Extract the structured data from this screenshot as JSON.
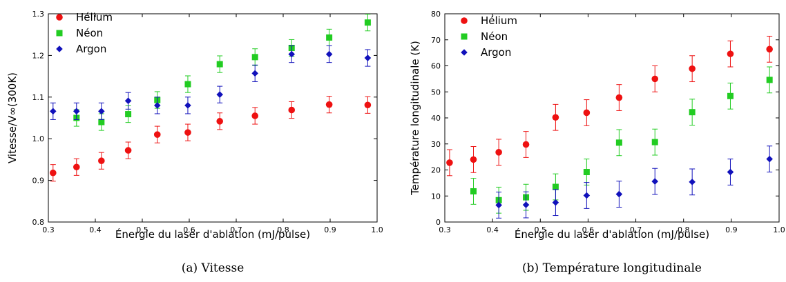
{
  "colors": {
    "helium": "#ee1111",
    "neon": "#22cc22",
    "argon": "#1111bb",
    "axis": "#000000"
  },
  "chart_data": [
    {
      "type": "scatter",
      "caption": "(a)  Vitesse",
      "xlabel": "Énergie du laser d'ablation (mJ/pulse)",
      "ylabel": "Vitesse/V∞(300K)",
      "xlim": [
        0.3,
        1.0
      ],
      "ylim": [
        0.8,
        1.3
      ],
      "xticks": [
        "0.3",
        "0.4",
        "0.5",
        "0.6",
        "0.7",
        "0.8",
        "0.9",
        "1.0"
      ],
      "yticks": [
        "0.8",
        "0.9",
        "1.0",
        "1.1",
        "1.2",
        "1.3"
      ],
      "grid": false,
      "legend_position": "top-left",
      "series": [
        {
          "name": "Hélium",
          "marker": "circle",
          "color": "#ee1111",
          "x": [
            0.31,
            0.36,
            0.413,
            0.47,
            0.532,
            0.597,
            0.665,
            0.74,
            0.818,
            0.898,
            0.98
          ],
          "y": [
            0.918,
            0.932,
            0.947,
            0.972,
            1.01,
            1.015,
            1.042,
            1.055,
            1.069,
            1.082,
            1.081
          ],
          "err": [
            0.02,
            0.02,
            0.02,
            0.02,
            0.02,
            0.02,
            0.02,
            0.02,
            0.02,
            0.02,
            0.02
          ]
        },
        {
          "name": "Néon",
          "marker": "square",
          "color": "#22cc22",
          "x": [
            0.36,
            0.413,
            0.47,
            0.532,
            0.597,
            0.665,
            0.74,
            0.818,
            0.898,
            0.98
          ],
          "y": [
            1.05,
            1.04,
            1.059,
            1.093,
            1.131,
            1.179,
            1.196,
            1.218,
            1.243,
            1.279
          ],
          "err": [
            0.02,
            0.02,
            0.02,
            0.02,
            0.02,
            0.02,
            0.02,
            0.02,
            0.02,
            0.02
          ]
        },
        {
          "name": "Argon",
          "marker": "diamond",
          "color": "#1111bb",
          "x": [
            0.31,
            0.36,
            0.413,
            0.47,
            0.532,
            0.597,
            0.665,
            0.74,
            0.818,
            0.898,
            0.98
          ],
          "y": [
            1.066,
            1.066,
            1.066,
            1.091,
            1.08,
            1.08,
            1.106,
            1.157,
            1.203,
            1.203,
            1.194
          ],
          "err": [
            0.02,
            0.02,
            0.02,
            0.02,
            0.02,
            0.02,
            0.02,
            0.02,
            0.02,
            0.02,
            0.02
          ]
        }
      ]
    },
    {
      "type": "scatter",
      "caption": "(b)  Température longitudinale",
      "xlabel": "Énergie du laser d'ablation (mJ/pulse)",
      "ylabel": "Température longitudinale (K)",
      "xlim": [
        0.3,
        1.0
      ],
      "ylim": [
        0,
        80
      ],
      "xticks": [
        "0.3",
        "0.4",
        "0.5",
        "0.6",
        "0.7",
        "0.8",
        "0.9",
        "1.0"
      ],
      "yticks": [
        "0",
        "10",
        "20",
        "30",
        "40",
        "50",
        "60",
        "70",
        "80"
      ],
      "grid": false,
      "legend_position": "top-left",
      "series": [
        {
          "name": "Hélium",
          "marker": "circle",
          "color": "#ee1111",
          "x": [
            0.31,
            0.36,
            0.413,
            0.47,
            0.532,
            0.597,
            0.665,
            0.74,
            0.818,
            0.898,
            0.98
          ],
          "y": [
            22.8,
            24,
            26.8,
            29.8,
            40.2,
            42,
            47.8,
            55,
            58.9,
            64.6,
            66.4
          ],
          "err": [
            5,
            5,
            5,
            5,
            5,
            5,
            5,
            5,
            5,
            5,
            5
          ]
        },
        {
          "name": "Néon",
          "marker": "square",
          "color": "#22cc22",
          "x": [
            0.36,
            0.413,
            0.47,
            0.532,
            0.597,
            0.665,
            0.74,
            0.818,
            0.898,
            0.98
          ],
          "y": [
            11.8,
            8.4,
            9.5,
            13.5,
            19.2,
            30.5,
            30.7,
            42.2,
            48.4,
            54.6
          ],
          "err": [
            5,
            5,
            5,
            5,
            5,
            5,
            5,
            5,
            5,
            5
          ]
        },
        {
          "name": "Argon",
          "marker": "diamond",
          "color": "#1111bb",
          "x": [
            0.413,
            0.47,
            0.532,
            0.597,
            0.665,
            0.74,
            0.818,
            0.898,
            0.98
          ],
          "y": [
            6.5,
            6.6,
            7.5,
            10.2,
            10.7,
            15.6,
            15.4,
            19.2,
            24.2
          ],
          "err": [
            5,
            5,
            5,
            5,
            5,
            5,
            5,
            5,
            5
          ]
        }
      ]
    }
  ]
}
